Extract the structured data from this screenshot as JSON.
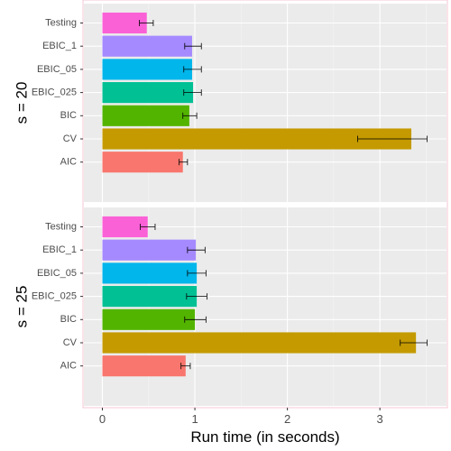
{
  "chart_data": {
    "type": "bar",
    "orientation": "horizontal",
    "xlabel": "Run time (in seconds)",
    "xlim": [
      -0.2,
      3.72
    ],
    "x_ticks": [
      0,
      1,
      2,
      3
    ],
    "grid": true,
    "legend": "none",
    "categories": [
      "AIC",
      "CV",
      "BIC",
      "EBIC_025",
      "EBIC_05",
      "EBIC_1",
      "Testing"
    ],
    "colors": {
      "AIC": "#F8766D",
      "CV": "#C49A00",
      "BIC": "#53B400",
      "EBIC_025": "#00C094",
      "EBIC_05": "#00B6EB",
      "EBIC_1": "#A58AFF",
      "Testing": "#FB61D7"
    },
    "panels": [
      {
        "label": "s = 20",
        "values": [
          0.87,
          3.34,
          0.94,
          0.98,
          0.97,
          0.97,
          0.48
        ],
        "error_low": [
          0.83,
          2.76,
          0.87,
          0.88,
          0.88,
          0.89,
          0.4
        ],
        "error_high": [
          0.92,
          3.51,
          1.02,
          1.07,
          1.07,
          1.07,
          0.55
        ]
      },
      {
        "label": "s = 25",
        "values": [
          0.9,
          3.39,
          1.0,
          1.02,
          1.02,
          1.01,
          0.49
        ],
        "error_low": [
          0.85,
          3.22,
          0.89,
          0.91,
          0.92,
          0.92,
          0.41
        ],
        "error_high": [
          0.95,
          3.51,
          1.12,
          1.13,
          1.12,
          1.11,
          0.57
        ]
      }
    ]
  }
}
